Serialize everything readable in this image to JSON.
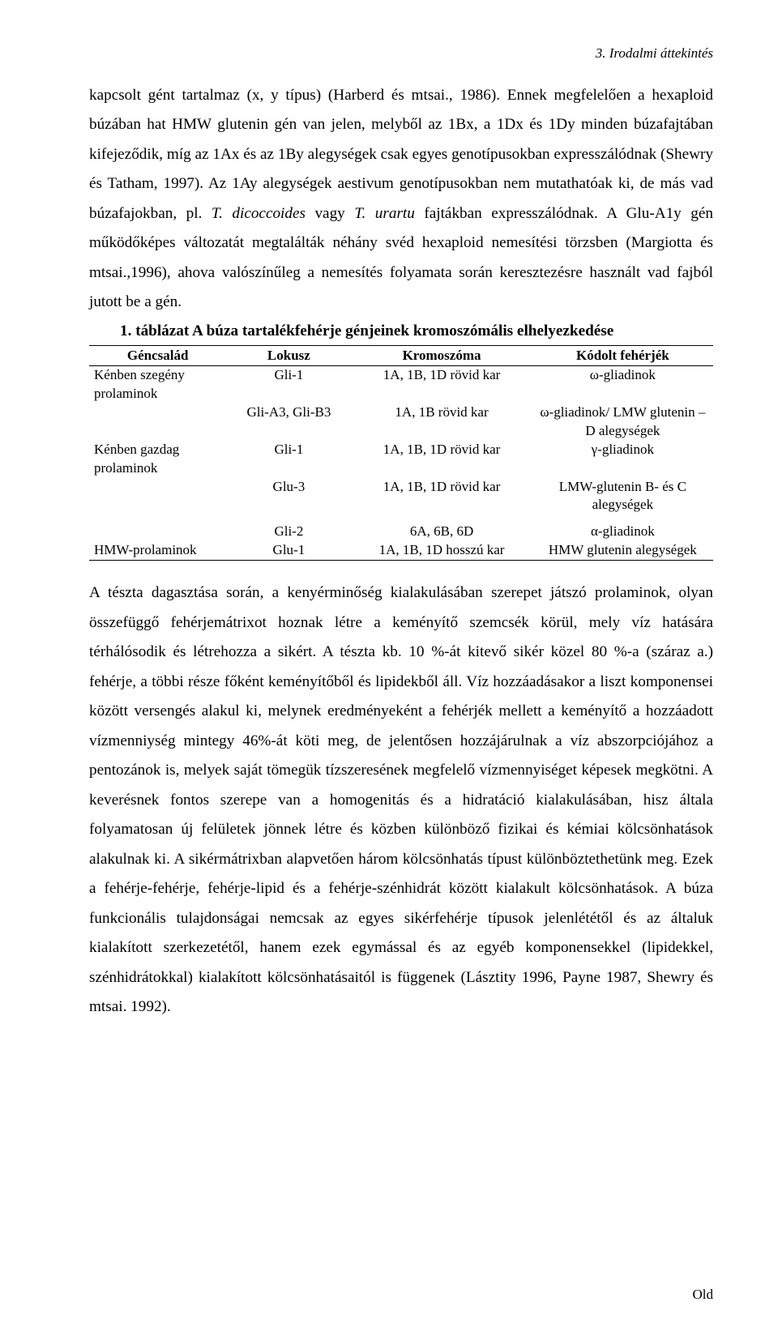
{
  "running_head": "3. Irodalmi áttekintés",
  "para1_a": "kapcsolt gént tartalmaz (x, y típus) (Harberd és mtsai., 1986). Ennek megfelelően a hexaploid búzában hat HMW glutenin gén van jelen, melyből az 1Bx, a 1Dx és 1Dy minden búzafajtában kifejeződik, míg az 1Ax és az 1By alegységek csak egyes genotípusokban expresszálódnak (Shewry és Tatham, 1997). Az 1Ay alegységek aestivum genotípusokban nem mutathatóak ki, de más vad búzafajokban, pl. ",
  "para1_i1": "T. dicoccoides",
  "para1_b": " vagy ",
  "para1_i2": "T. urartu",
  "para1_c": " fajtákban expresszálódnak. A Glu-A1y gén működőképes változatát megtalálták néhány svéd hexaploid nemesítési törzsben (Margiotta és mtsai.,1996), ahova valószínűleg a nemesítés folyamata során keresztezésre használt vad fajból jutott be a gén.",
  "table_title": "1. táblázat A búza tartalékfehérje génjeinek kromoszómális elhelyezkedése",
  "table": {
    "headers": [
      "Géncsalád",
      "Lokusz",
      "Kromoszóma",
      "Kódolt fehérjék"
    ],
    "rows": [
      {
        "family": "Kénben szegény prolaminok",
        "locus": "Gli-1",
        "chrom": "1A, 1B, 1D rövid kar",
        "protein": "ω-gliadinok"
      },
      {
        "family": "",
        "locus": "Gli-A3, Gli-B3",
        "chrom": "1A, 1B rövid kar",
        "protein": "ω-gliadinok/ LMW glutenin – D alegységek"
      },
      {
        "family": "Kénben gazdag prolaminok",
        "locus": "Gli-1",
        "chrom": "1A, 1B, 1D rövid kar",
        "protein": "γ-gliadinok"
      },
      {
        "family": "",
        "locus": "Glu-3",
        "chrom": "1A, 1B, 1D rövid kar",
        "protein": "LMW-glutenin B- és C alegységek"
      },
      {
        "family": "",
        "locus": "Gli-2",
        "chrom": "6A, 6B, 6D",
        "protein": "α-gliadinok"
      },
      {
        "family": "HMW-prolaminok",
        "locus": "Glu-1",
        "chrom": "1A, 1B, 1D hosszú kar",
        "protein": "HMW glutenin alegységek"
      }
    ]
  },
  "para2": "A tészta dagasztása során, a kenyérminőség kialakulásában szerepet játszó prolaminok, olyan összefüggő fehérjemátrixot hoznak létre a keményítő szemcsék körül, mely víz hatására térhálósodik és létrehozza a sikért. A tészta kb. 10 %-át kitevő sikér közel 80 %-a (száraz a.) fehérje, a többi része főként keményítőből és lipidekből áll. Víz hozzáadásakor a liszt komponensei között versengés alakul ki, melynek eredményeként a fehérjék mellett a keményítő a hozzáadott vízmenniység mintegy 46%-át köti meg, de jelentősen hozzájárulnak a víz abszorpciójához a pentozánok is, melyek saját tömegük tízszeresének megfelelő vízmennyiséget képesek megkötni. A keverésnek fontos szerepe van a homogenitás és a hidratáció kialakulásában, hisz általa folyamatosan új felületek jönnek létre és közben különböző fizikai és kémiai kölcsönhatások alakulnak ki. A sikérmátrixban alapvetően három kölcsönhatás típust különböztethetünk meg. Ezek a fehérje-fehérje, fehérje-lipid és a fehérje-szénhidrát között kialakult kölcsönhatások. A búza funkcionális tulajdonságai nemcsak az egyes sikérfehérje típusok jelenlététől és az általuk kialakított szerkezetétől, hanem ezek egymással és az egyéb komponensekkel (lipidekkel, szénhidrátokkal) kialakított kölcsönhatásaitól is függenek (Lásztity 1996, Payne 1987, Shewry és mtsai. 1992).",
  "footer": "Old"
}
